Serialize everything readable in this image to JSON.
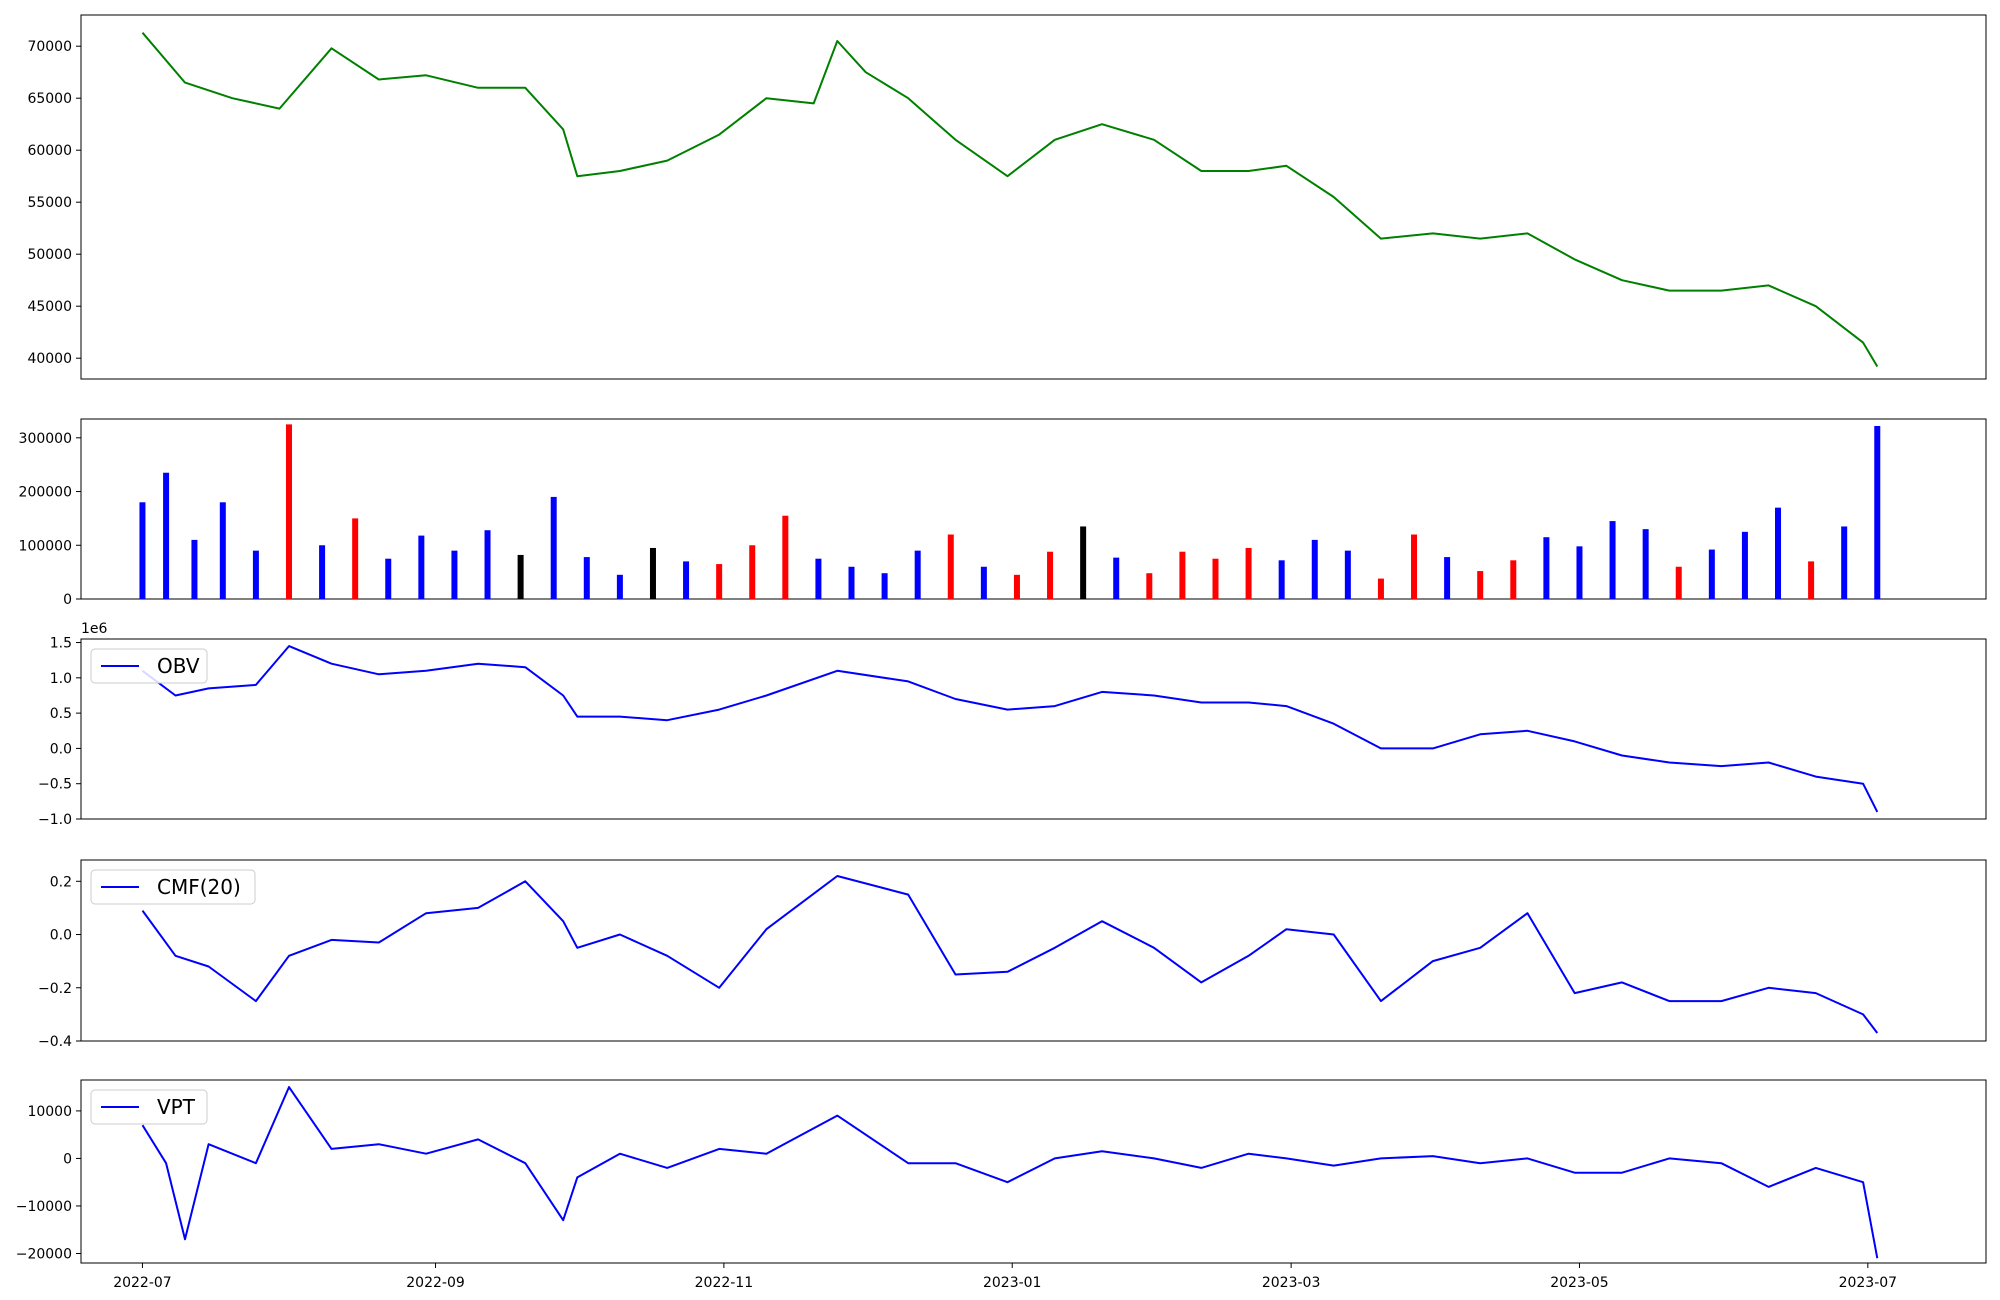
{
  "chart_data": [
    {
      "type": "line",
      "panel": "price",
      "color": "#008000",
      "ylim": [
        38000,
        73000
      ],
      "yticks": [
        40000,
        45000,
        50000,
        55000,
        60000,
        65000,
        70000
      ],
      "ytick_labels": [
        "40000",
        "45000",
        "50000",
        "55000",
        "60000",
        "65000",
        "70000"
      ],
      "x_dates": [
        "2022-07-01",
        "2022-07-10",
        "2022-07-20",
        "2022-07-30",
        "2022-08-10",
        "2022-08-20",
        "2022-08-30",
        "2022-09-10",
        "2022-09-20",
        "2022-09-28",
        "2022-10-01",
        "2022-10-10",
        "2022-10-20",
        "2022-10-31",
        "2022-11-10",
        "2022-11-20",
        "2022-11-25",
        "2022-12-01",
        "2022-12-10",
        "2022-12-20",
        "2022-12-31",
        "2023-01-10",
        "2023-01-20",
        "2023-01-31",
        "2023-02-10",
        "2023-02-20",
        "2023-02-28",
        "2023-03-10",
        "2023-03-20",
        "2023-03-31",
        "2023-04-10",
        "2023-04-20",
        "2023-04-30",
        "2023-05-10",
        "2023-05-20",
        "2023-05-31",
        "2023-06-10",
        "2023-06-20",
        "2023-06-30",
        "2023-07-03"
      ],
      "values": [
        71300,
        66500,
        65000,
        64000,
        69800,
        66800,
        67200,
        66000,
        66000,
        62000,
        57500,
        58000,
        59000,
        61500,
        65000,
        64500,
        70500,
        67500,
        65000,
        61000,
        57500,
        61000,
        62500,
        61000,
        58000,
        58000,
        58500,
        55500,
        51500,
        52000,
        51500,
        52000,
        49500,
        47500,
        46500,
        46500,
        47000,
        45000,
        41500,
        39200
      ]
    },
    {
      "type": "bar",
      "panel": "volume",
      "ylim": [
        0,
        335000
      ],
      "yticks": [
        0,
        100000,
        200000,
        300000
      ],
      "ytick_labels": [
        "0",
        "100000",
        "200000",
        "300000"
      ],
      "color_legend": {
        "up": "#0000ff",
        "down": "#ff0000",
        "unchanged": "#000000"
      },
      "bar_color_keys": [
        "up",
        "down",
        "unchanged"
      ],
      "values_note_excluded": true,
      "x_dates": [
        "2022-07-01",
        "2022-07-06",
        "2022-07-12",
        "2022-07-18",
        "2022-07-25",
        "2022-08-01",
        "2022-08-08",
        "2022-08-15",
        "2022-08-22",
        "2022-08-29",
        "2022-09-05",
        "2022-09-12",
        "2022-09-19",
        "2022-09-26",
        "2022-10-03",
        "2022-10-10",
        "2022-10-17",
        "2022-10-24",
        "2022-10-31",
        "2022-11-07",
        "2022-11-14",
        "2022-11-21",
        "2022-11-28",
        "2022-12-05",
        "2022-12-12",
        "2022-12-19",
        "2022-12-26",
        "2023-01-02",
        "2023-01-09",
        "2023-01-16",
        "2023-01-23",
        "2023-01-30",
        "2023-02-06",
        "2023-02-13",
        "2023-02-20",
        "2023-02-27",
        "2023-03-06",
        "2023-03-13",
        "2023-03-20",
        "2023-03-27",
        "2023-04-03",
        "2023-04-10",
        "2023-04-17",
        "2023-04-24",
        "2023-05-01",
        "2023-05-08",
        "2023-05-15",
        "2023-05-22",
        "2023-05-29",
        "2023-06-05",
        "2023-06-12",
        "2023-06-19",
        "2023-06-26",
        "2023-07-03"
      ],
      "values": [
        180000,
        235000,
        110000,
        180000,
        90000,
        325000,
        100000,
        150000,
        75000,
        118000,
        90000,
        128000,
        82000,
        190000,
        78000,
        45000,
        95000,
        70000,
        65000,
        100000,
        155000,
        75000,
        60000,
        48000,
        90000,
        120000,
        60000,
        45000,
        88000,
        135000,
        77000,
        48000,
        88000,
        75000,
        95000,
        72000,
        110000,
        90000,
        38000,
        120000,
        78000,
        52000,
        72000,
        115000,
        98000,
        145000,
        130000,
        60000,
        92000,
        125000,
        170000,
        70000,
        135000,
        322000
      ],
      "colors": [
        "up",
        "up",
        "up",
        "up",
        "up",
        "down",
        "up",
        "down",
        "up",
        "up",
        "up",
        "up",
        "unchanged",
        "up",
        "up",
        "up",
        "unchanged",
        "up",
        "down",
        "down",
        "down",
        "up",
        "up",
        "up",
        "up",
        "down",
        "up",
        "down",
        "down",
        "unchanged",
        "up",
        "down",
        "down",
        "down",
        "down",
        "up",
        "up",
        "up",
        "down",
        "down",
        "up",
        "down",
        "down",
        "up",
        "up",
        "up",
        "up",
        "down",
        "up",
        "up",
        "up",
        "down",
        "up",
        "up"
      ]
    },
    {
      "type": "line",
      "panel": "obv",
      "color": "#0000ff",
      "series_name": "OBV",
      "offset_text": "1e6",
      "ylim": [
        -1.0,
        1.55
      ],
      "yticks": [
        -1.0,
        -0.5,
        0.0,
        0.5,
        1.0,
        1.5
      ],
      "ytick_labels": [
        "−1.0",
        "−0.5",
        "0.0",
        "0.5",
        "1.0",
        "1.5"
      ],
      "x_dates": [
        "2022-07-01",
        "2022-07-08",
        "2022-07-15",
        "2022-07-25",
        "2022-08-01",
        "2022-08-10",
        "2022-08-20",
        "2022-08-30",
        "2022-09-10",
        "2022-09-20",
        "2022-09-28",
        "2022-10-01",
        "2022-10-10",
        "2022-10-20",
        "2022-10-31",
        "2022-11-10",
        "2022-11-25",
        "2022-12-10",
        "2022-12-20",
        "2022-12-31",
        "2023-01-10",
        "2023-01-20",
        "2023-01-31",
        "2023-02-10",
        "2023-02-20",
        "2023-02-28",
        "2023-03-10",
        "2023-03-20",
        "2023-03-31",
        "2023-04-10",
        "2023-04-20",
        "2023-04-30",
        "2023-05-10",
        "2023-05-20",
        "2023-05-31",
        "2023-06-10",
        "2023-06-20",
        "2023-06-30",
        "2023-07-03"
      ],
      "values": [
        1.1,
        0.75,
        0.85,
        0.9,
        1.45,
        1.2,
        1.05,
        1.1,
        1.2,
        1.15,
        0.75,
        0.45,
        0.45,
        0.4,
        0.55,
        0.75,
        1.1,
        0.95,
        0.7,
        0.55,
        0.6,
        0.8,
        0.75,
        0.65,
        0.65,
        0.6,
        0.35,
        0.0,
        0.0,
        0.2,
        0.25,
        0.1,
        -0.1,
        -0.2,
        -0.25,
        -0.2,
        -0.4,
        -0.5,
        -0.9
      ]
    },
    {
      "type": "line",
      "panel": "cmf",
      "color": "#0000ff",
      "series_name": "CMF(20)",
      "ylim": [
        -0.4,
        0.28
      ],
      "yticks": [
        -0.4,
        -0.2,
        0.0,
        0.2
      ],
      "ytick_labels": [
        "−0.4",
        "−0.2",
        "0.0",
        "0.2"
      ],
      "x_dates": [
        "2022-07-01",
        "2022-07-08",
        "2022-07-15",
        "2022-07-25",
        "2022-08-01",
        "2022-08-10",
        "2022-08-20",
        "2022-08-30",
        "2022-09-10",
        "2022-09-20",
        "2022-09-28",
        "2022-10-01",
        "2022-10-10",
        "2022-10-20",
        "2022-10-31",
        "2022-11-10",
        "2022-11-25",
        "2022-12-10",
        "2022-12-20",
        "2022-12-31",
        "2023-01-10",
        "2023-01-20",
        "2023-01-31",
        "2023-02-10",
        "2023-02-20",
        "2023-02-28",
        "2023-03-10",
        "2023-03-20",
        "2023-03-31",
        "2023-04-10",
        "2023-04-20",
        "2023-04-30",
        "2023-05-10",
        "2023-05-20",
        "2023-05-31",
        "2023-06-10",
        "2023-06-20",
        "2023-06-30",
        "2023-07-03"
      ],
      "values": [
        0.09,
        -0.08,
        -0.12,
        -0.25,
        -0.08,
        -0.02,
        -0.03,
        0.08,
        0.1,
        0.2,
        0.05,
        -0.05,
        0.0,
        -0.08,
        -0.2,
        0.02,
        0.22,
        0.15,
        -0.15,
        -0.14,
        -0.05,
        0.05,
        -0.05,
        -0.18,
        -0.08,
        0.02,
        0.0,
        -0.25,
        -0.1,
        -0.05,
        0.08,
        -0.22,
        -0.18,
        -0.25,
        -0.25,
        -0.2,
        -0.22,
        -0.3,
        -0.37
      ]
    },
    {
      "type": "line",
      "panel": "vpt",
      "color": "#0000ff",
      "series_name": "VPT",
      "ylim": [
        -22000,
        16500
      ],
      "yticks": [
        -20000,
        -10000,
        0,
        10000
      ],
      "ytick_labels": [
        "−20000",
        "−10000",
        "0",
        "10000"
      ],
      "x_dates": [
        "2022-07-01",
        "2022-07-06",
        "2022-07-10",
        "2022-07-15",
        "2022-07-25",
        "2022-08-01",
        "2022-08-10",
        "2022-08-20",
        "2022-08-30",
        "2022-09-10",
        "2022-09-20",
        "2022-09-28",
        "2022-10-01",
        "2022-10-10",
        "2022-10-20",
        "2022-10-31",
        "2022-11-10",
        "2022-11-25",
        "2022-12-10",
        "2022-12-20",
        "2022-12-31",
        "2023-01-10",
        "2023-01-20",
        "2023-01-31",
        "2023-02-10",
        "2023-02-20",
        "2023-02-28",
        "2023-03-10",
        "2023-03-20",
        "2023-03-31",
        "2023-04-10",
        "2023-04-20",
        "2023-04-30",
        "2023-05-10",
        "2023-05-20",
        "2023-05-31",
        "2023-06-10",
        "2023-06-20",
        "2023-06-30",
        "2023-07-03"
      ],
      "values": [
        7000,
        -1000,
        -17000,
        3000,
        -1000,
        15000,
        2000,
        3000,
        1000,
        4000,
        -1000,
        -13000,
        -4000,
        1000,
        -2000,
        2000,
        1000,
        9000,
        -1000,
        -1000,
        -5000,
        0,
        1500,
        0,
        -2000,
        1000,
        0,
        -1500,
        0,
        500,
        -1000,
        0,
        -3000,
        -3000,
        0,
        -1000,
        -6000,
        -2000,
        -5000,
        -21000
      ]
    }
  ],
  "x_axis": {
    "ticks": [
      "2022-07",
      "2022-09",
      "2022-11",
      "2023-01",
      "2023-03",
      "2023-05",
      "2023-07"
    ],
    "xlim": [
      "2022-06-18",
      "2023-07-26"
    ]
  }
}
